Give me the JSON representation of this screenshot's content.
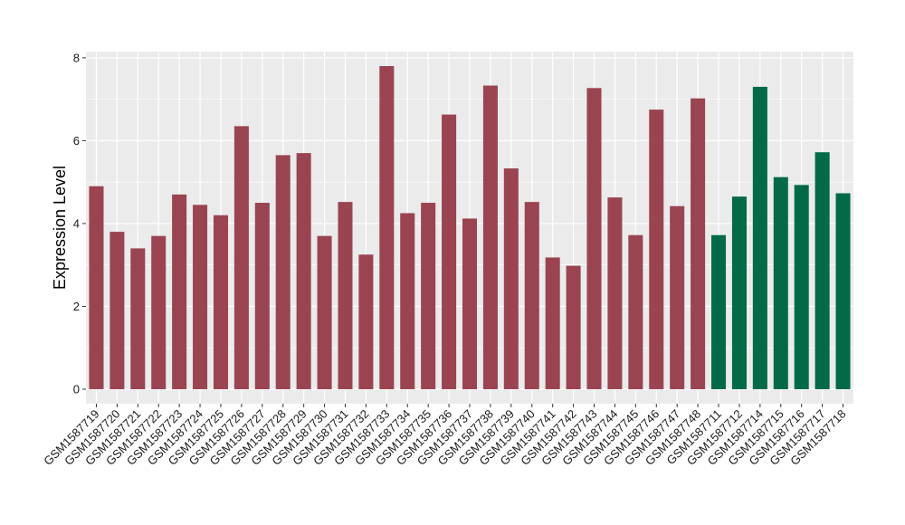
{
  "chart_data": {
    "type": "bar",
    "title": "",
    "xlabel": "",
    "ylabel": "Expression Level",
    "ylim": [
      -0.35,
      8.15
    ],
    "yticks": [
      0,
      2,
      4,
      6,
      8
    ],
    "grid": true,
    "legend": "none",
    "colors": {
      "group_a": "#9A4452",
      "group_b": "#026A47",
      "panel": "#EBEBEB",
      "grid": "#FFFFFF"
    },
    "categories": [
      "GSM1587719",
      "GSM1587720",
      "GSM1587721",
      "GSM1587722",
      "GSM1587723",
      "GSM1587724",
      "GSM1587725",
      "GSM1587726",
      "GSM1587727",
      "GSM1587728",
      "GSM1587729",
      "GSM1587730",
      "GSM1587731",
      "GSM1587732",
      "GSM1587733",
      "GSM1587734",
      "GSM1587735",
      "GSM1587736",
      "GSM1587737",
      "GSM1587738",
      "GSM1587739",
      "GSM1587740",
      "GSM1587741",
      "GSM1587742",
      "GSM1587743",
      "GSM1587744",
      "GSM1587745",
      "GSM1587746",
      "GSM1587747",
      "GSM1587748",
      "GSM1587711",
      "GSM1587712",
      "GSM1587714",
      "GSM1587715",
      "GSM1587716",
      "GSM1587717",
      "GSM1587718"
    ],
    "values": [
      4.9,
      3.8,
      3.4,
      3.7,
      4.7,
      4.45,
      4.2,
      6.35,
      4.5,
      5.65,
      5.7,
      3.7,
      4.52,
      3.25,
      7.8,
      4.25,
      4.5,
      6.63,
      4.12,
      7.33,
      5.33,
      4.52,
      3.18,
      2.98,
      7.27,
      4.63,
      3.72,
      6.75,
      4.42,
      7.02,
      3.72,
      4.65,
      7.3,
      5.12,
      4.93,
      5.72,
      4.73
    ],
    "groups": [
      "a",
      "a",
      "a",
      "a",
      "a",
      "a",
      "a",
      "a",
      "a",
      "a",
      "a",
      "a",
      "a",
      "a",
      "a",
      "a",
      "a",
      "a",
      "a",
      "a",
      "a",
      "a",
      "a",
      "a",
      "a",
      "a",
      "a",
      "a",
      "a",
      "a",
      "b",
      "b",
      "b",
      "b",
      "b",
      "b",
      "b"
    ]
  }
}
